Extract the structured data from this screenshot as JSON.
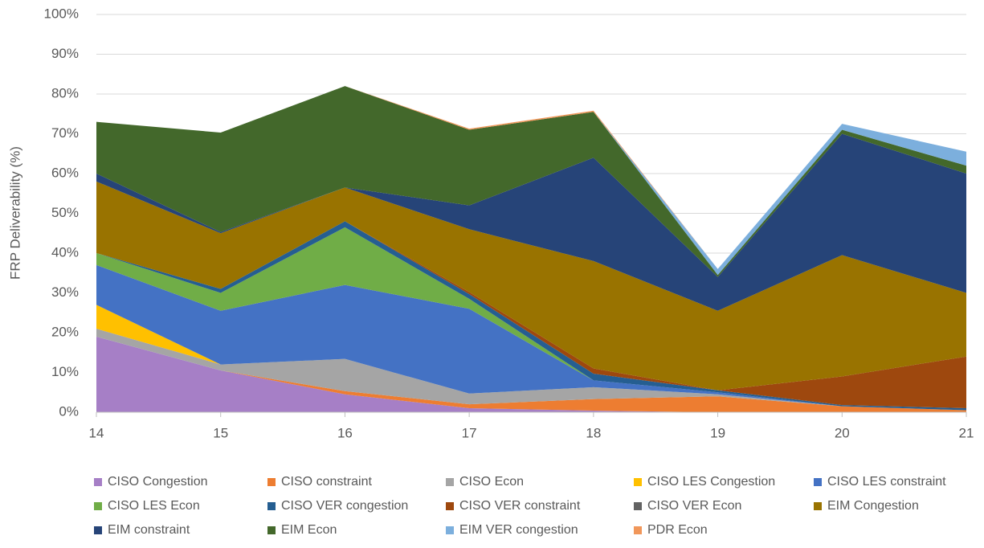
{
  "chart_data": {
    "type": "area",
    "stacked": true,
    "y_axis_label": "FRP Deliverability (%)",
    "x": [
      14,
      15,
      16,
      17,
      18,
      19,
      20,
      21
    ],
    "xlim": [
      14,
      21
    ],
    "xticks": [
      14,
      15,
      16,
      17,
      18,
      19,
      20,
      21
    ],
    "ylim": [
      0,
      100
    ],
    "yticks": [
      {
        "value": 0,
        "label": "0%"
      },
      {
        "value": 10,
        "label": "10%"
      },
      {
        "value": 20,
        "label": "20%"
      },
      {
        "value": 30,
        "label": "30%"
      },
      {
        "value": 40,
        "label": "40%"
      },
      {
        "value": 50,
        "label": "50%"
      },
      {
        "value": 60,
        "label": "60%"
      },
      {
        "value": 70,
        "label": "70%"
      },
      {
        "value": 80,
        "label": "80%"
      },
      {
        "value": 90,
        "label": "90%"
      },
      {
        "value": 100,
        "label": "100%"
      }
    ],
    "grid": true,
    "legend": "bottom",
    "series": [
      {
        "name": "CISO Congestion",
        "color": "#a67fc6",
        "values": [
          19,
          10.5,
          4.5,
          1,
          0.4,
          0,
          0,
          0
        ]
      },
      {
        "name": "CISO constraint",
        "color": "#ed7d31",
        "values": [
          0,
          0,
          0.8,
          1,
          2.9,
          4,
          1.5,
          0.5
        ]
      },
      {
        "name": "CISO Econ",
        "color": "#a5a5a5",
        "values": [
          2,
          1.5,
          8.1,
          2.7,
          3,
          0.5,
          0,
          0
        ]
      },
      {
        "name": "CISO LES Congestion",
        "color": "#ffc000",
        "values": [
          6,
          0,
          0,
          0,
          0,
          0,
          0,
          0
        ]
      },
      {
        "name": "CISO LES constraint",
        "color": "#4472c4",
        "values": [
          10,
          13.5,
          18.6,
          21.3,
          1.7,
          0.5,
          0,
          0
        ]
      },
      {
        "name": "CISO LES Econ",
        "color": "#70ad47",
        "values": [
          3,
          4.5,
          14.5,
          2.5,
          0,
          0,
          0,
          0
        ]
      },
      {
        "name": "CISO VER congestion",
        "color": "#255e91",
        "values": [
          0,
          1,
          1.5,
          1.2,
          1.7,
          0.5,
          0.3,
          0.5
        ]
      },
      {
        "name": "CISO VER constraint",
        "color": "#9e480e",
        "values": [
          0,
          0,
          0,
          0.5,
          1.3,
          0,
          7.2,
          13
        ]
      },
      {
        "name": "CISO VER Econ",
        "color": "#636363",
        "values": [
          0,
          0,
          0,
          0,
          0,
          0,
          0,
          0
        ]
      },
      {
        "name": "EIM Congestion",
        "color": "#997300",
        "values": [
          18,
          14,
          8.5,
          15.8,
          27,
          20,
          30.5,
          16
        ]
      },
      {
        "name": "EIM constraint",
        "color": "#264478",
        "values": [
          2,
          0.3,
          0,
          6,
          26,
          8.5,
          30.5,
          30
        ]
      },
      {
        "name": "EIM Econ",
        "color": "#43682b",
        "values": [
          13,
          25,
          25.5,
          19,
          11.5,
          0.5,
          1,
          2
        ]
      },
      {
        "name": "EIM VER congestion",
        "color": "#7cafdd",
        "values": [
          0,
          0,
          0,
          0,
          0,
          1.5,
          1.5,
          3.5
        ]
      },
      {
        "name": "PDR Econ",
        "color": "#f1975a",
        "values": [
          0,
          0,
          0,
          0.3,
          0.3,
          0,
          0,
          0
        ]
      }
    ]
  }
}
